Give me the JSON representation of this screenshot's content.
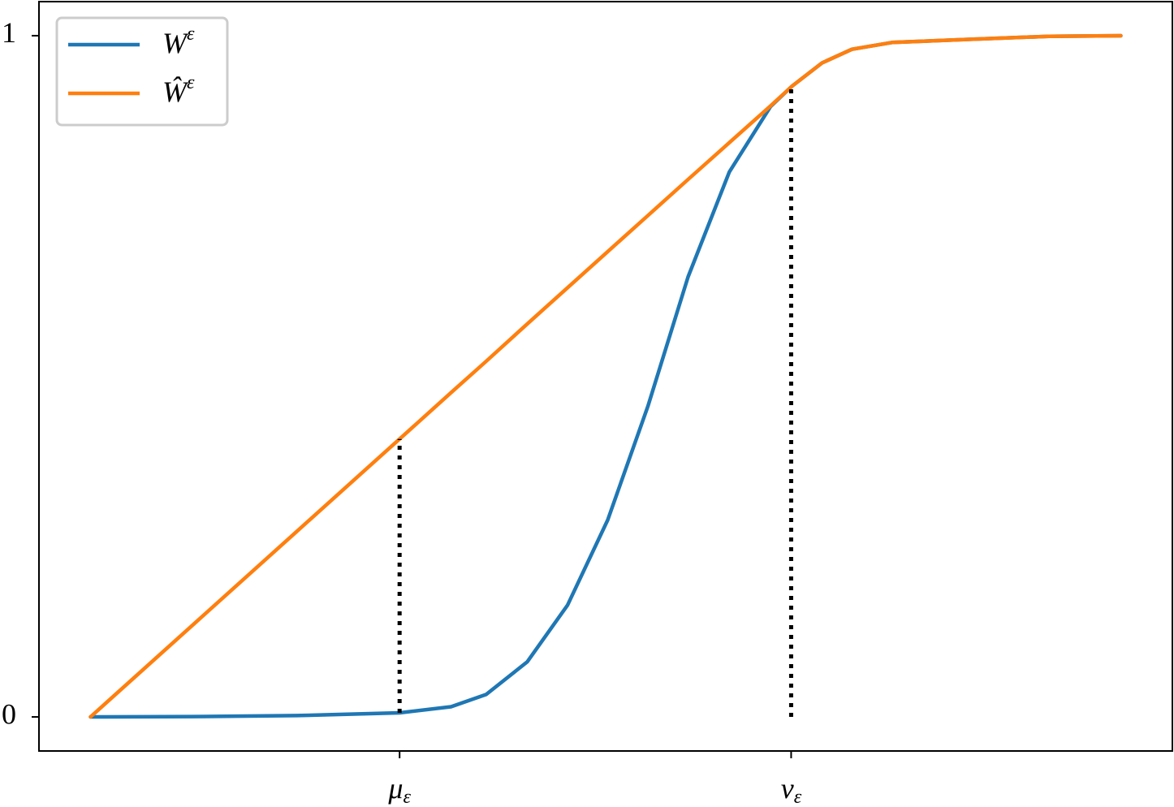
{
  "chart_data": {
    "type": "line",
    "x": [
      0,
      0.1,
      0.2,
      0.3,
      0.35,
      0.384,
      0.424,
      0.463,
      0.502,
      0.541,
      0.58,
      0.62,
      0.66,
      0.681,
      0.71,
      0.739,
      0.778,
      0.857,
      0.93,
      1.0
    ],
    "series": [
      {
        "name": "Wε",
        "color": "#1f77b4",
        "values": [
          0,
          0.0005,
          0.002,
          0.006,
          0.015,
          0.033,
          0.081,
          0.164,
          0.289,
          0.456,
          0.646,
          0.8,
          0.896,
          0.926,
          0.96,
          0.98,
          0.99,
          0.995,
          0.999,
          1.0
        ]
      },
      {
        "name": "Ŵε",
        "color": "#ff7f0e",
        "values": [
          0,
          0.136,
          0.272,
          0.408,
          0.476,
          0.522,
          0.577,
          0.63,
          0.683,
          0.736,
          0.789,
          0.843,
          0.897,
          0.926,
          0.96,
          0.98,
          0.99,
          0.995,
          0.999,
          1.0
        ]
      }
    ],
    "vlines": [
      {
        "x": 0.3,
        "y0": 0.006,
        "y1": 0.408
      },
      {
        "x": 0.68,
        "y0": 0,
        "y1": 0.926
      }
    ],
    "xlim": [
      -0.05,
      1.05
    ],
    "ylim": [
      -0.05,
      1.05
    ],
    "xticks": [
      {
        "value": 0.3,
        "label": "με"
      },
      {
        "value": 0.68,
        "label": "νε"
      }
    ],
    "yticks": [
      0,
      1
    ],
    "legend": "upper left"
  }
}
